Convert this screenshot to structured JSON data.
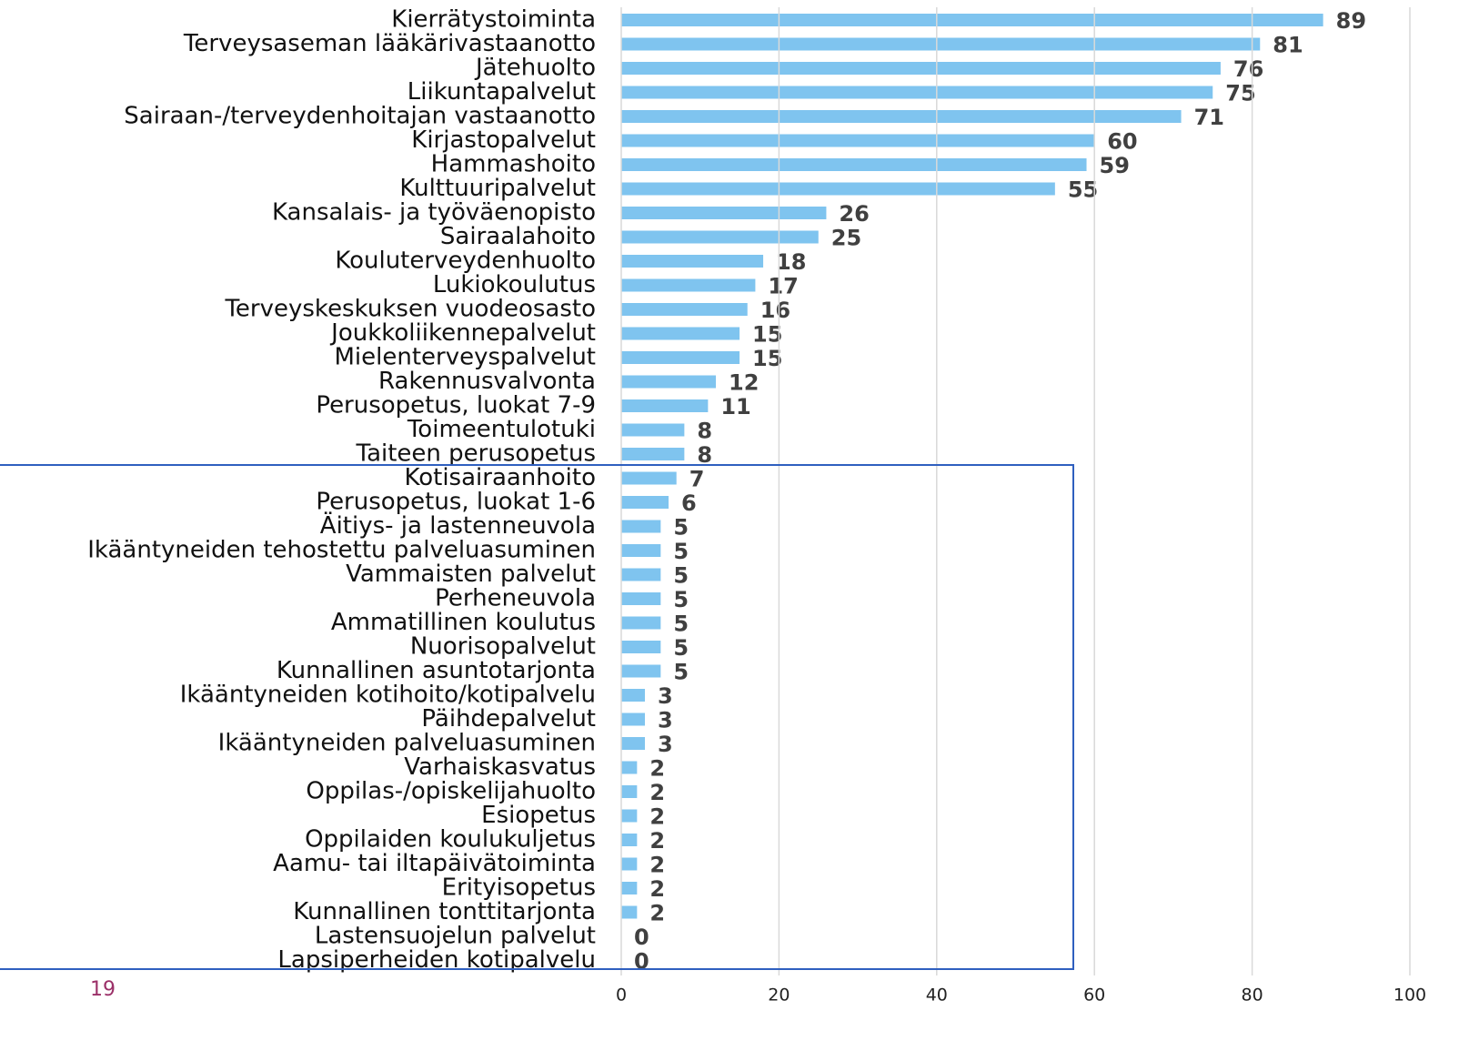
{
  "page_number": "19",
  "chart_data": {
    "type": "barh",
    "color": "#7fc4ef",
    "grid": true,
    "categories": [
      "Kierrätystoiminta",
      "Terveysaseman lääkärivastaanotto",
      "Jätehuolto",
      "Liikuntapalvelut",
      "Sairaan-/terveydenhoitajan vastaanotto",
      "Kirjastopalvelut",
      "Hammashoito",
      "Kulttuuripalvelut",
      "Kansalais- ja työväenopisto",
      "Sairaalahoito",
      "Kouluterveydenhuolto",
      "Lukiokoulutus",
      "Terveyskeskuksen vuodeosasto",
      "Joukkoliikennepalvelut",
      "Mielenterveyspalvelut",
      "Rakennusvalvonta",
      "Perusopetus, luokat 7-9",
      "Toimeentulotuki",
      "Taiteen perusopetus",
      "Kotisairaanhoito",
      "Perusopetus, luokat 1-6",
      "Äitiys- ja lastenneuvola",
      "Ikääntyneiden tehostettu palveluasuminen",
      "Vammaisten palvelut",
      "Perheneuvola",
      "Ammatillinen koulutus",
      "Nuorisopalvelut",
      "Kunnallinen asuntotarjonta",
      "Ikääntyneiden kotihoito/kotipalvelu",
      "Päihdepalvelut",
      "Ikääntyneiden palveluasuminen",
      "Varhaiskasvatus",
      "Oppilas-/opiskelijahuolto",
      "Esiopetus",
      "Oppilaiden koulukuljetus",
      "Aamu- tai iltapäivätoiminta",
      "Erityisopetus",
      "Kunnallinen tonttitarjonta",
      "Lastensuojelun palvelut",
      "Lapsiperheiden kotipalvelu"
    ],
    "values": [
      89,
      81,
      76,
      75,
      71,
      60,
      59,
      55,
      26,
      25,
      18,
      17,
      16,
      15,
      15,
      12,
      11,
      8,
      8,
      7,
      6,
      5,
      5,
      5,
      5,
      5,
      5,
      5,
      3,
      3,
      3,
      2,
      2,
      2,
      2,
      2,
      2,
      2,
      0,
      0
    ],
    "xlim": [
      0,
      100
    ],
    "xticks": [
      0,
      20,
      40,
      60,
      80,
      100
    ]
  }
}
